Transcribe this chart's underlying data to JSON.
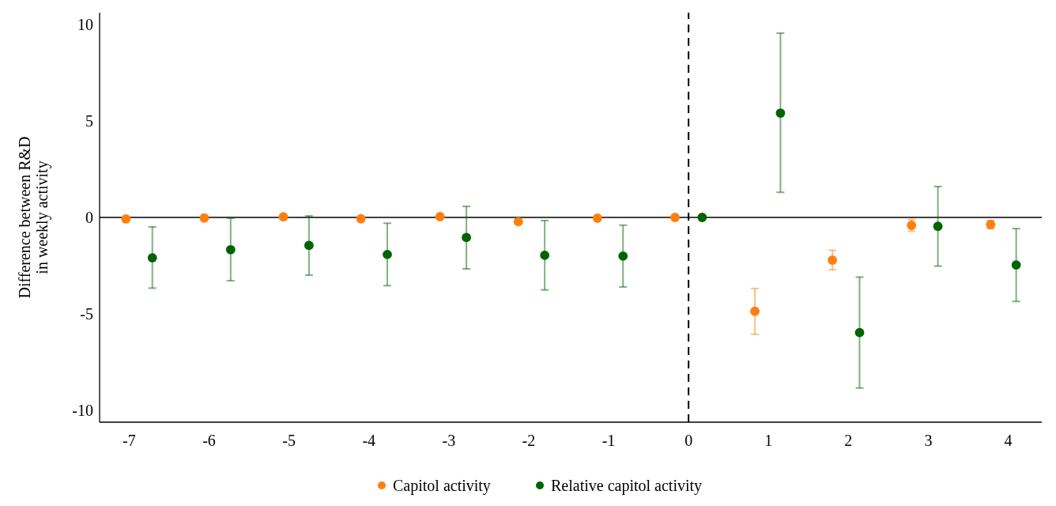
{
  "chart_data": {
    "type": "scatter",
    "ylabel": "Difference between R&D\nin weekly activity",
    "xlim": [
      -7.37,
      4.42
    ],
    "ylim": [
      -10.6,
      10.6
    ],
    "xticks": [
      -7,
      -6,
      -5,
      -4,
      -3,
      -2,
      -1,
      0,
      1,
      2,
      3,
      4
    ],
    "yticks": [
      -10,
      -5,
      0,
      5,
      10
    ],
    "grid": false,
    "legend": "bottom",
    "marker": "circle",
    "ref_lines": [
      {
        "axis": "x",
        "value": 0,
        "line_style": "dashed",
        "color": "#000000"
      },
      {
        "axis": "y",
        "value": 0,
        "line_style": "solid",
        "color": "#000000"
      }
    ],
    "series": [
      {
        "name": "Capitol activity",
        "color": "#ff7f0e",
        "x": [
          -7.04,
          -6.06,
          -5.07,
          -4.1,
          -3.11,
          -2.13,
          -1.14,
          -0.17,
          0.83,
          1.8,
          2.79,
          3.78
        ],
        "values": [
          -0.08,
          -0.03,
          0.03,
          -0.07,
          0.04,
          -0.22,
          -0.04,
          0,
          -4.86,
          -2.21,
          -0.41,
          -0.37
        ],
        "errors": [
          null,
          null,
          null,
          null,
          null,
          null,
          null,
          null,
          [
            -6.05,
            -3.68
          ],
          [
            -2.71,
            -1.7
          ],
          [
            -0.71,
            -0.11
          ],
          [
            -0.58,
            -0.16
          ]
        ]
      },
      {
        "name": "Relative capitol activity",
        "color": "#006400",
        "x": [
          -6.71,
          -5.73,
          -4.75,
          -3.77,
          -2.78,
          -1.8,
          -0.82,
          0.17,
          1.15,
          2.14,
          3.12,
          4.1
        ],
        "values": [
          -2.09,
          -1.67,
          -1.45,
          -1.92,
          -1.04,
          -1.96,
          -2.0,
          0,
          5.4,
          -5.96,
          -0.46,
          -2.46
        ],
        "errors": [
          [
            -3.66,
            -0.49
          ],
          [
            -3.28,
            -0.04
          ],
          [
            -2.99,
            0.08
          ],
          [
            -3.53,
            -0.3
          ],
          [
            -2.66,
            0.57
          ],
          [
            -3.75,
            -0.16
          ],
          [
            -3.6,
            -0.4
          ],
          null,
          [
            1.3,
            9.54
          ],
          [
            -8.83,
            -3.09
          ],
          [
            -2.52,
            1.6
          ],
          [
            -4.35,
            -0.58
          ]
        ]
      }
    ]
  }
}
